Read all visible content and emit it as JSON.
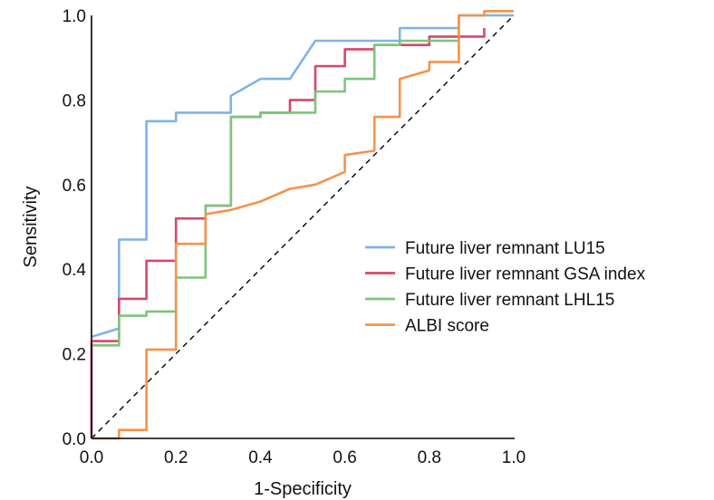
{
  "chart_data": {
    "type": "line",
    "title": "",
    "xlabel": "1-Specificity",
    "ylabel": "Sensitivity",
    "xlim": [
      0,
      1
    ],
    "ylim": [
      0,
      1
    ],
    "x_ticks": [
      "0.0",
      "0.2",
      "0.4",
      "0.6",
      "0.8",
      "1.0"
    ],
    "y_ticks": [
      "0.0",
      "0.2",
      "0.4",
      "0.6",
      "0.8",
      "1.0"
    ],
    "grid": false,
    "legend_position": "center-right",
    "reference_line": {
      "style": "dashed",
      "from": [
        0,
        0
      ],
      "to": [
        1,
        1
      ],
      "color": "#000000"
    },
    "series": [
      {
        "name": "Future liver remnant LU15",
        "color": "#7fb3e6",
        "points": [
          [
            0,
            0.24
          ],
          [
            0.065,
            0.26
          ],
          [
            0.065,
            0.47
          ],
          [
            0.13,
            0.47
          ],
          [
            0.13,
            0.75
          ],
          [
            0.2,
            0.75
          ],
          [
            0.2,
            0.77
          ],
          [
            0.33,
            0.77
          ],
          [
            0.33,
            0.81
          ],
          [
            0.4,
            0.85
          ],
          [
            0.47,
            0.85
          ],
          [
            0.53,
            0.94
          ],
          [
            0.73,
            0.94
          ],
          [
            0.73,
            0.97
          ],
          [
            0.87,
            0.97
          ],
          [
            0.87,
            1.0
          ],
          [
            1.0,
            1.0
          ]
        ]
      },
      {
        "name": "Future liver remnant GSA index",
        "color": "#d6476a",
        "points": [
          [
            0,
            0
          ],
          [
            0,
            0.23
          ],
          [
            0.065,
            0.23
          ],
          [
            0.065,
            0.33
          ],
          [
            0.13,
            0.33
          ],
          [
            0.13,
            0.42
          ],
          [
            0.2,
            0.42
          ],
          [
            0.2,
            0.52
          ],
          [
            0.27,
            0.52
          ],
          [
            0.27,
            0.55
          ],
          [
            0.33,
            0.55
          ],
          [
            0.33,
            0.76
          ],
          [
            0.4,
            0.76
          ],
          [
            0.4,
            0.77
          ],
          [
            0.47,
            0.77
          ],
          [
            0.47,
            0.8
          ],
          [
            0.53,
            0.8
          ],
          [
            0.53,
            0.88
          ],
          [
            0.6,
            0.88
          ],
          [
            0.6,
            0.92
          ],
          [
            0.67,
            0.92
          ],
          [
            0.67,
            0.93
          ],
          [
            0.8,
            0.93
          ],
          [
            0.8,
            0.95
          ],
          [
            0.93,
            0.95
          ],
          [
            0.93,
            0.97
          ]
        ]
      },
      {
        "name": "Future liver remnant LHL15",
        "color": "#7dc47d",
        "points": [
          [
            0,
            0.22
          ],
          [
            0.065,
            0.22
          ],
          [
            0.065,
            0.29
          ],
          [
            0.13,
            0.29
          ],
          [
            0.13,
            0.3
          ],
          [
            0.2,
            0.3
          ],
          [
            0.2,
            0.38
          ],
          [
            0.27,
            0.38
          ],
          [
            0.27,
            0.55
          ],
          [
            0.33,
            0.55
          ],
          [
            0.33,
            0.76
          ],
          [
            0.4,
            0.76
          ],
          [
            0.4,
            0.77
          ],
          [
            0.53,
            0.77
          ],
          [
            0.53,
            0.82
          ],
          [
            0.6,
            0.82
          ],
          [
            0.6,
            0.85
          ],
          [
            0.67,
            0.85
          ],
          [
            0.67,
            0.93
          ],
          [
            0.73,
            0.93
          ],
          [
            0.73,
            0.94
          ],
          [
            0.87,
            0.94
          ],
          [
            0.87,
            0.95
          ]
        ]
      },
      {
        "name": "ALBI score",
        "color": "#f5924a",
        "points": [
          [
            0,
            0
          ],
          [
            0.065,
            0
          ],
          [
            0.065,
            0.02
          ],
          [
            0.13,
            0.02
          ],
          [
            0.13,
            0.21
          ],
          [
            0.2,
            0.21
          ],
          [
            0.2,
            0.46
          ],
          [
            0.27,
            0.46
          ],
          [
            0.27,
            0.53
          ],
          [
            0.33,
            0.54
          ],
          [
            0.4,
            0.56
          ],
          [
            0.47,
            0.59
          ],
          [
            0.53,
            0.6
          ],
          [
            0.6,
            0.63
          ],
          [
            0.6,
            0.67
          ],
          [
            0.67,
            0.68
          ],
          [
            0.67,
            0.76
          ],
          [
            0.73,
            0.76
          ],
          [
            0.73,
            0.85
          ],
          [
            0.8,
            0.87
          ],
          [
            0.8,
            0.89
          ],
          [
            0.87,
            0.89
          ],
          [
            0.87,
            1.0
          ],
          [
            0.93,
            1.0
          ],
          [
            0.93,
            1.01
          ],
          [
            1.0,
            1.01
          ]
        ]
      }
    ]
  }
}
